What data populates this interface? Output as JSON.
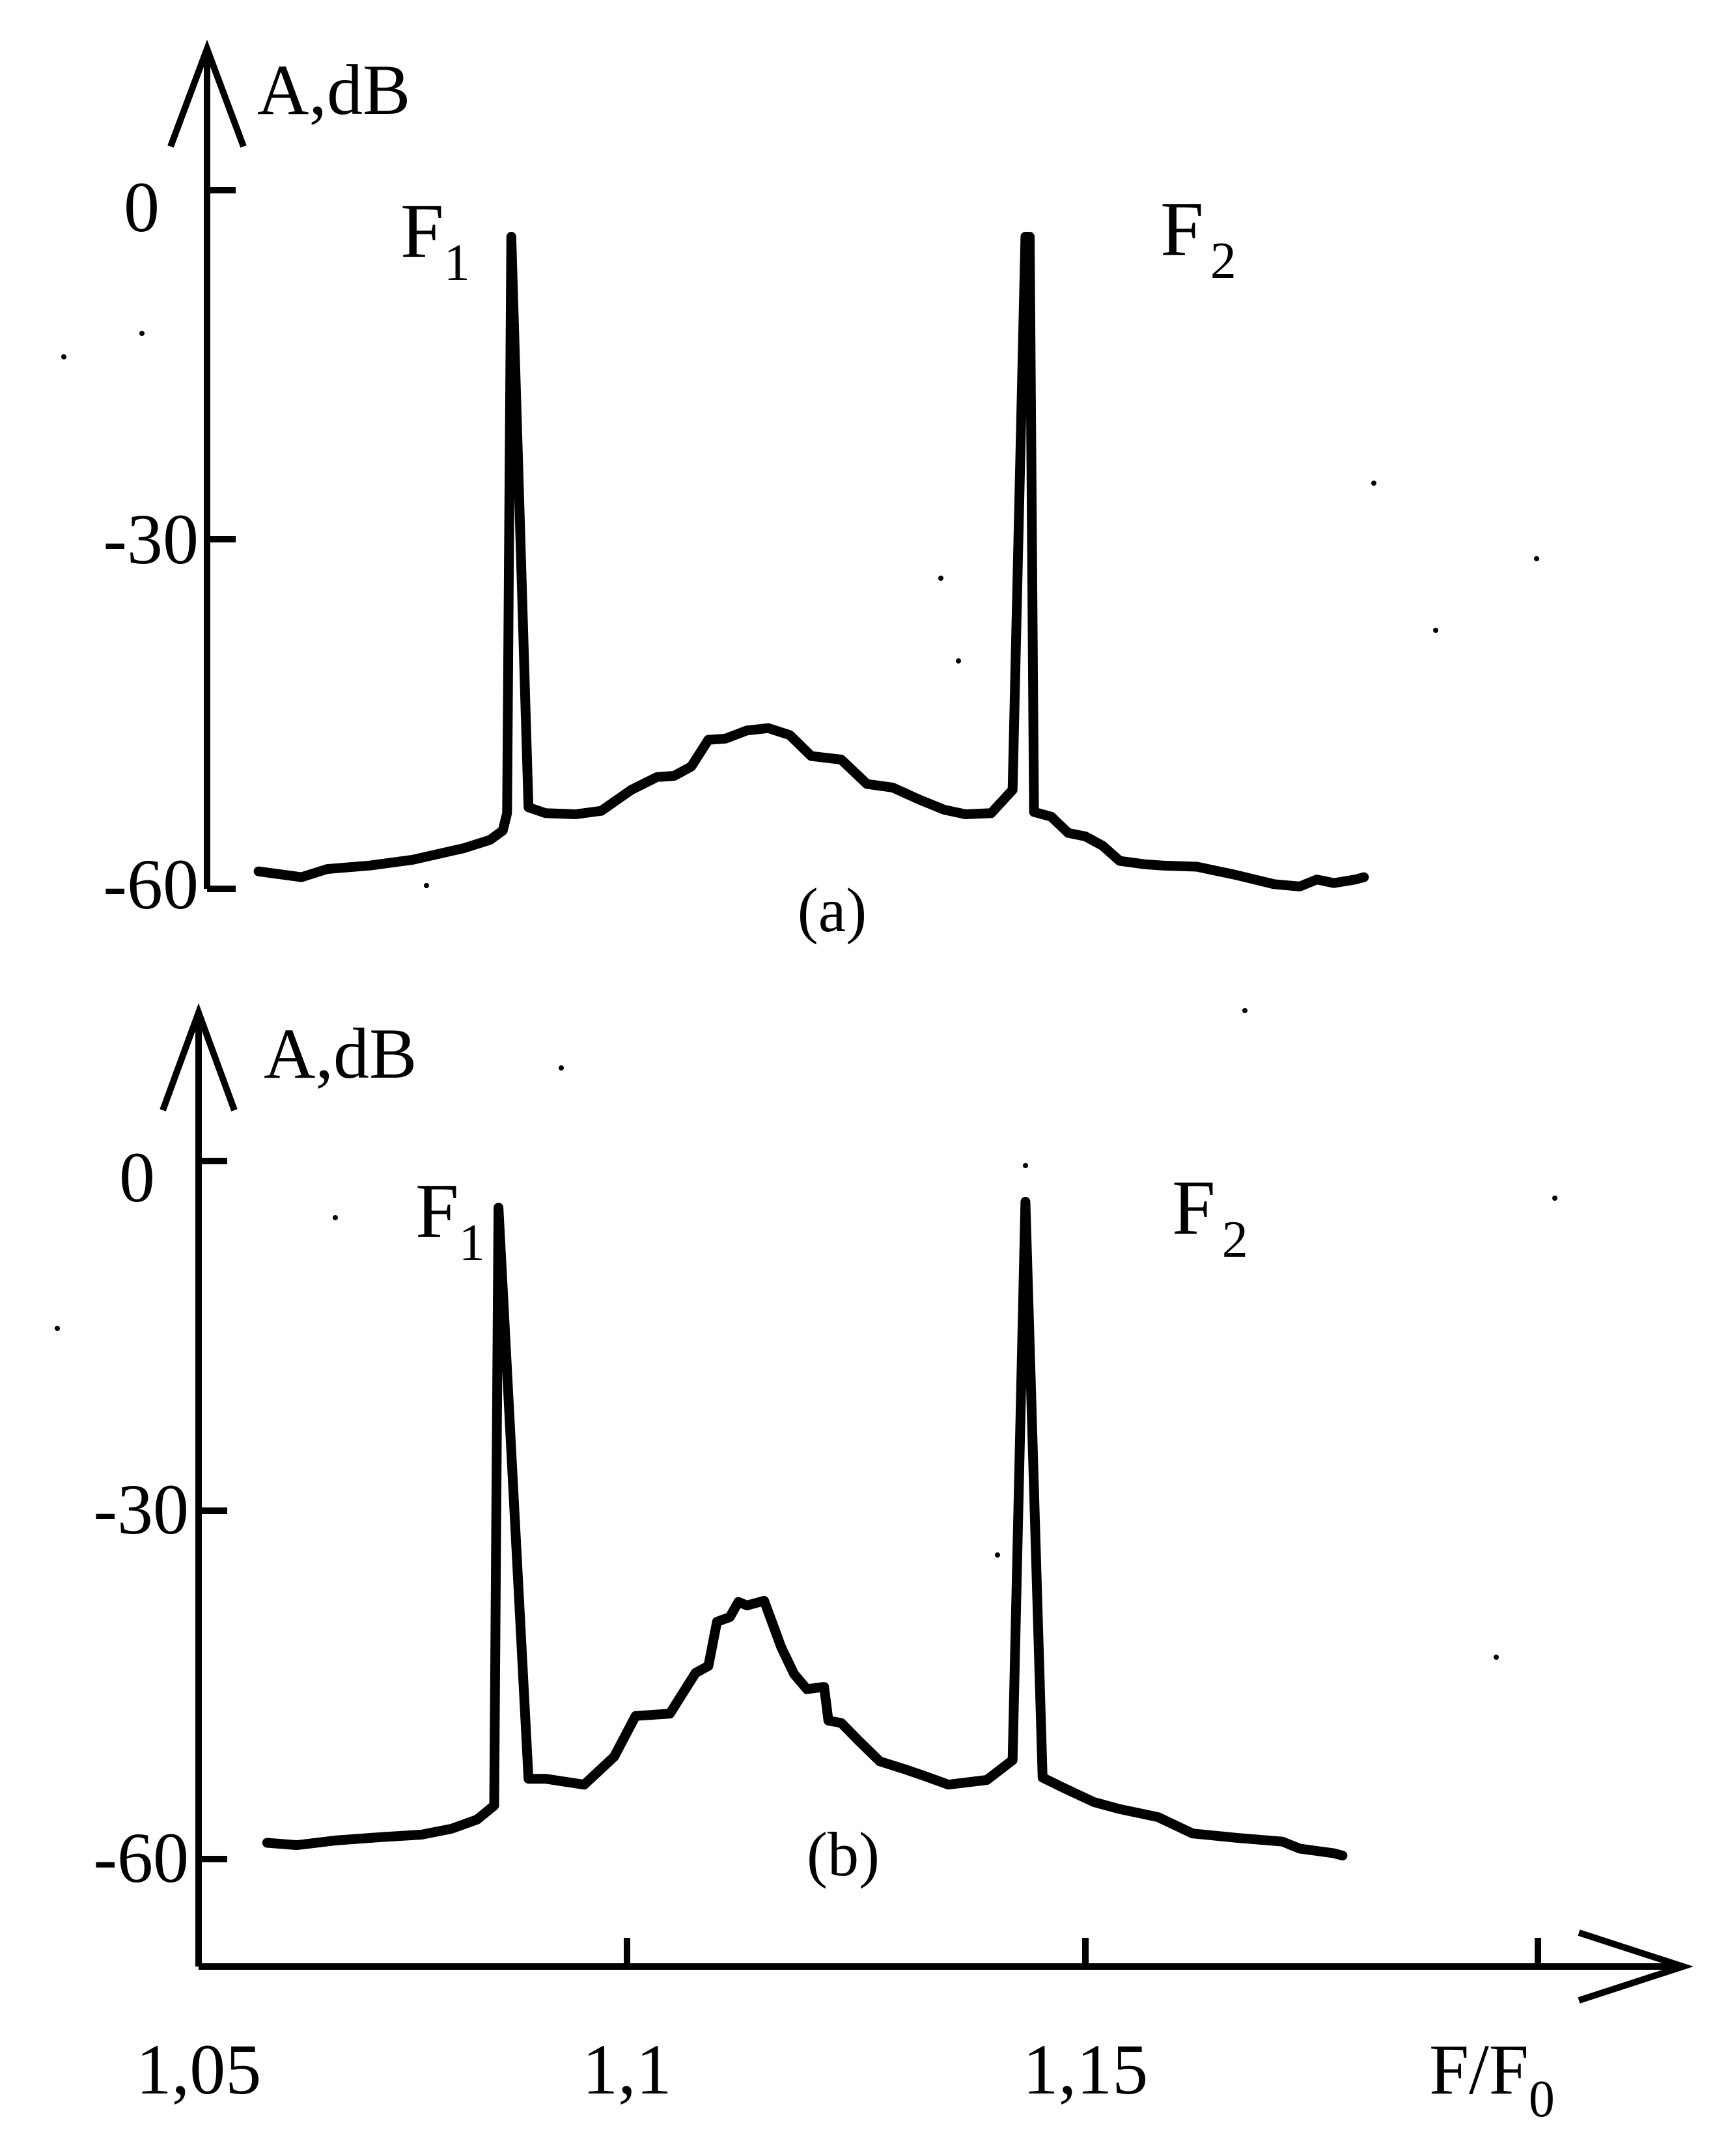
{
  "chart_data": [
    {
      "type": "line",
      "panel_label": "(a)",
      "ylabel": "A,dB",
      "yticks": [
        "0",
        "-30",
        "-60"
      ],
      "ylim": [
        -60,
        0
      ],
      "xlim": [
        1.05,
        1.19
      ],
      "peak_labels": [
        {
          "base": "F",
          "sub": "1"
        },
        {
          "base": "F",
          "sub": "2"
        }
      ],
      "series": [
        {
          "x": [
            1.057,
            1.062,
            1.065,
            1.07,
            1.075,
            1.081,
            1.084,
            1.0855,
            1.086,
            1.0865,
            1.0885,
            1.0905,
            1.094,
            1.097,
            1.1005,
            1.1035,
            1.1055,
            1.1075,
            1.1095,
            1.1115,
            1.114,
            1.1165,
            1.119,
            1.1215,
            1.125,
            1.128,
            1.131,
            1.134,
            1.137,
            1.1395,
            1.1425,
            1.145,
            1.1465,
            1.147,
            1.1475,
            1.1495,
            1.1515,
            1.1535,
            1.1555,
            1.1575,
            1.1605,
            1.1625,
            1.1665,
            1.171,
            1.1755,
            1.1785,
            1.1805,
            1.1825,
            1.185,
            1.186
          ],
          "y": [
            -58.5,
            -59,
            -58.3,
            -58,
            -57.5,
            -56.5,
            -55.8,
            -55.0,
            -53.5,
            -4,
            -53,
            -53.5,
            -53.6,
            -53.3,
            -51.5,
            -50.4,
            -50.3,
            -49.5,
            -47.2,
            -47.1,
            -46.4,
            -46.2,
            -46.8,
            -48.6,
            -48.9,
            -51.0,
            -51.3,
            -52.3,
            -53.2,
            -53.6,
            -53.5,
            -51.5,
            -4,
            -4,
            -53.4,
            -53.8,
            -55.2,
            -55.5,
            -56.3,
            -57.6,
            -57.9,
            -58.0,
            -58.1,
            -58.8,
            -59.6,
            -59.8,
            -59.2,
            -59.5,
            -59.2,
            -59.0
          ]
        }
      ]
    },
    {
      "type": "line",
      "panel_label": "(b)",
      "ylabel": "A,dB",
      "yticks": [
        "0",
        "-30",
        "-60"
      ],
      "ylim": [
        -60,
        0
      ],
      "xlabel_base": "F/F",
      "xlabel_sub": "0",
      "xticks": [
        "1,05",
        "1,1",
        "1,15"
      ],
      "xlim": [
        1.05,
        1.19
      ],
      "peak_labels": [
        {
          "base": "F",
          "sub": "1"
        },
        {
          "base": "F",
          "sub": "2"
        }
      ],
      "series": [
        {
          "x": [
            1.058,
            1.0615,
            1.066,
            1.0715,
            1.076,
            1.0795,
            1.0825,
            1.0845,
            1.085,
            1.0885,
            1.0905,
            1.095,
            1.0985,
            1.101,
            1.105,
            1.108,
            1.1095,
            1.1105,
            1.112,
            1.113,
            1.114,
            1.116,
            1.118,
            1.1195,
            1.121,
            1.123,
            1.1235,
            1.125,
            1.127,
            1.1295,
            1.1325,
            1.1345,
            1.1375,
            1.142,
            1.145,
            1.1465,
            1.1485,
            1.151,
            1.1545,
            1.1575,
            1.162,
            1.166,
            1.1715,
            1.1765,
            1.1785,
            1.1805,
            1.1825,
            1.1835
          ],
          "y": [
            -58.6,
            -58.8,
            -58.4,
            -58.1,
            -57.9,
            -57.4,
            -56.6,
            -55.4,
            -4,
            -53.1,
            -53.1,
            -53.6,
            -51.2,
            -47.7,
            -47.5,
            -44.0,
            -43.4,
            -39.6,
            -39.2,
            -37.9,
            -38.2,
            -37.8,
            -41.8,
            -44.1,
            -45.4,
            -45.2,
            -48.1,
            -48.3,
            -49.8,
            -51.6,
            -52.3,
            -52.8,
            -53.6,
            -53.2,
            -51.5,
            -3.5,
            -53.0,
            -53.9,
            -55.1,
            -55.7,
            -56.4,
            -57.8,
            -58.2,
            -58.5,
            -59.1,
            -59.3,
            -59.5,
            -59.7
          ]
        }
      ]
    }
  ]
}
